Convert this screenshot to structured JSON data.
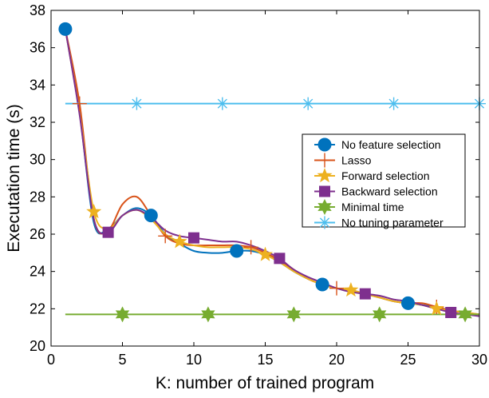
{
  "chart_data": {
    "type": "line",
    "title": "",
    "xlabel": "K: number of trained program",
    "ylabel": "Executation time (s)",
    "xlim": [
      0,
      30
    ],
    "ylim": [
      20,
      38
    ],
    "xticks": [
      0,
      5,
      10,
      15,
      20,
      25,
      30
    ],
    "yticks": [
      20,
      22,
      24,
      26,
      28,
      30,
      32,
      34,
      36,
      38
    ],
    "grid": false,
    "legend_position": "right",
    "series": [
      {
        "name": "No feature selection",
        "color": "#0072BD",
        "marker": "circle",
        "x": [
          1,
          2,
          3,
          4,
          5,
          6,
          7,
          8,
          9,
          10,
          11,
          12,
          13,
          14,
          15,
          16,
          17,
          18,
          19,
          20,
          21,
          22,
          23,
          24,
          25,
          26,
          27,
          28,
          29,
          30
        ],
        "y": [
          37.0,
          32.5,
          26.6,
          26.3,
          27.0,
          27.4,
          27.0,
          26.0,
          25.5,
          25.1,
          25.0,
          25.0,
          25.1,
          25.1,
          24.9,
          24.5,
          24.0,
          23.6,
          23.3,
          23.1,
          23.0,
          22.8,
          22.6,
          22.4,
          22.3,
          22.2,
          22.1,
          21.9,
          21.8,
          21.6
        ],
        "marker_x": [
          1,
          7,
          13,
          19,
          25
        ],
        "marker_y": [
          37.0,
          27.0,
          25.1,
          23.3,
          22.3
        ]
      },
      {
        "name": "Lasso",
        "color": "#D95319",
        "marker": "plus",
        "x": [
          1,
          2,
          3,
          4,
          5,
          6,
          7,
          8,
          9,
          10,
          11,
          12,
          13,
          14,
          15,
          16,
          17,
          18,
          19,
          20,
          21,
          22,
          23,
          24,
          25,
          26,
          27,
          28,
          29,
          30
        ],
        "y": [
          37.0,
          33.0,
          26.8,
          26.2,
          27.6,
          28.0,
          27.0,
          25.9,
          25.5,
          25.4,
          25.4,
          25.4,
          25.4,
          25.3,
          25.0,
          24.6,
          24.1,
          23.6,
          23.3,
          23.1,
          23.0,
          22.8,
          22.6,
          22.4,
          22.3,
          22.3,
          22.1,
          21.9,
          21.8,
          21.7
        ],
        "marker_x": [
          2,
          8,
          14,
          20,
          27
        ],
        "marker_y": [
          33.0,
          25.9,
          25.3,
          23.1,
          22.1
        ]
      },
      {
        "name": "Forward selection",
        "color": "#EDB120",
        "marker": "star",
        "x": [
          1,
          2,
          3,
          4,
          5,
          6,
          7,
          8,
          9,
          10,
          11,
          12,
          13,
          14,
          15,
          16,
          17,
          18,
          19,
          20,
          21,
          22,
          23,
          24,
          25,
          26,
          27,
          28,
          29,
          30
        ],
        "y": [
          37.0,
          32.5,
          27.2,
          26.3,
          27.0,
          27.3,
          26.8,
          26.0,
          25.6,
          25.4,
          25.3,
          25.3,
          25.3,
          25.2,
          24.9,
          24.5,
          24.0,
          23.6,
          23.3,
          23.1,
          23.0,
          22.8,
          22.6,
          22.4,
          22.3,
          22.2,
          22.0,
          21.9,
          21.8,
          21.7
        ],
        "marker_x": [
          3,
          9,
          15,
          21,
          27
        ],
        "marker_y": [
          27.2,
          25.6,
          24.9,
          23.0,
          22.0
        ]
      },
      {
        "name": "Backward selection",
        "color": "#7E2F8E",
        "marker": "square",
        "x": [
          1,
          2,
          3,
          4,
          5,
          6,
          7,
          8,
          9,
          10,
          11,
          12,
          13,
          14,
          15,
          16,
          17,
          18,
          19,
          20,
          21,
          22,
          23,
          24,
          25,
          26,
          27,
          28,
          29,
          30
        ],
        "y": [
          37.0,
          32.4,
          26.8,
          26.1,
          27.0,
          27.3,
          26.9,
          26.2,
          25.9,
          25.8,
          25.7,
          25.6,
          25.6,
          25.4,
          25.1,
          24.7,
          24.1,
          23.7,
          23.4,
          23.1,
          22.9,
          22.8,
          22.7,
          22.5,
          22.4,
          22.2,
          22.0,
          21.8,
          21.7,
          21.6
        ],
        "marker_x": [
          4,
          10,
          16,
          22,
          28
        ],
        "marker_y": [
          26.1,
          25.8,
          24.7,
          22.8,
          21.8
        ]
      },
      {
        "name": "Minimal time",
        "color": "#77AC30",
        "marker": "hexagram",
        "x": [
          1,
          30
        ],
        "y": [
          21.7,
          21.7
        ],
        "marker_x": [
          5,
          11,
          17,
          23,
          29
        ],
        "marker_y": [
          21.7,
          21.7,
          21.7,
          21.7,
          21.7
        ]
      },
      {
        "name": "No tuning parameter",
        "color": "#4DBEEE",
        "marker": "asterisk",
        "x": [
          1,
          30
        ],
        "y": [
          33.0,
          33.0
        ],
        "marker_x": [
          6,
          12,
          18,
          24,
          30
        ],
        "marker_y": [
          33.0,
          33.0,
          33.0,
          33.0,
          33.0
        ]
      }
    ]
  }
}
